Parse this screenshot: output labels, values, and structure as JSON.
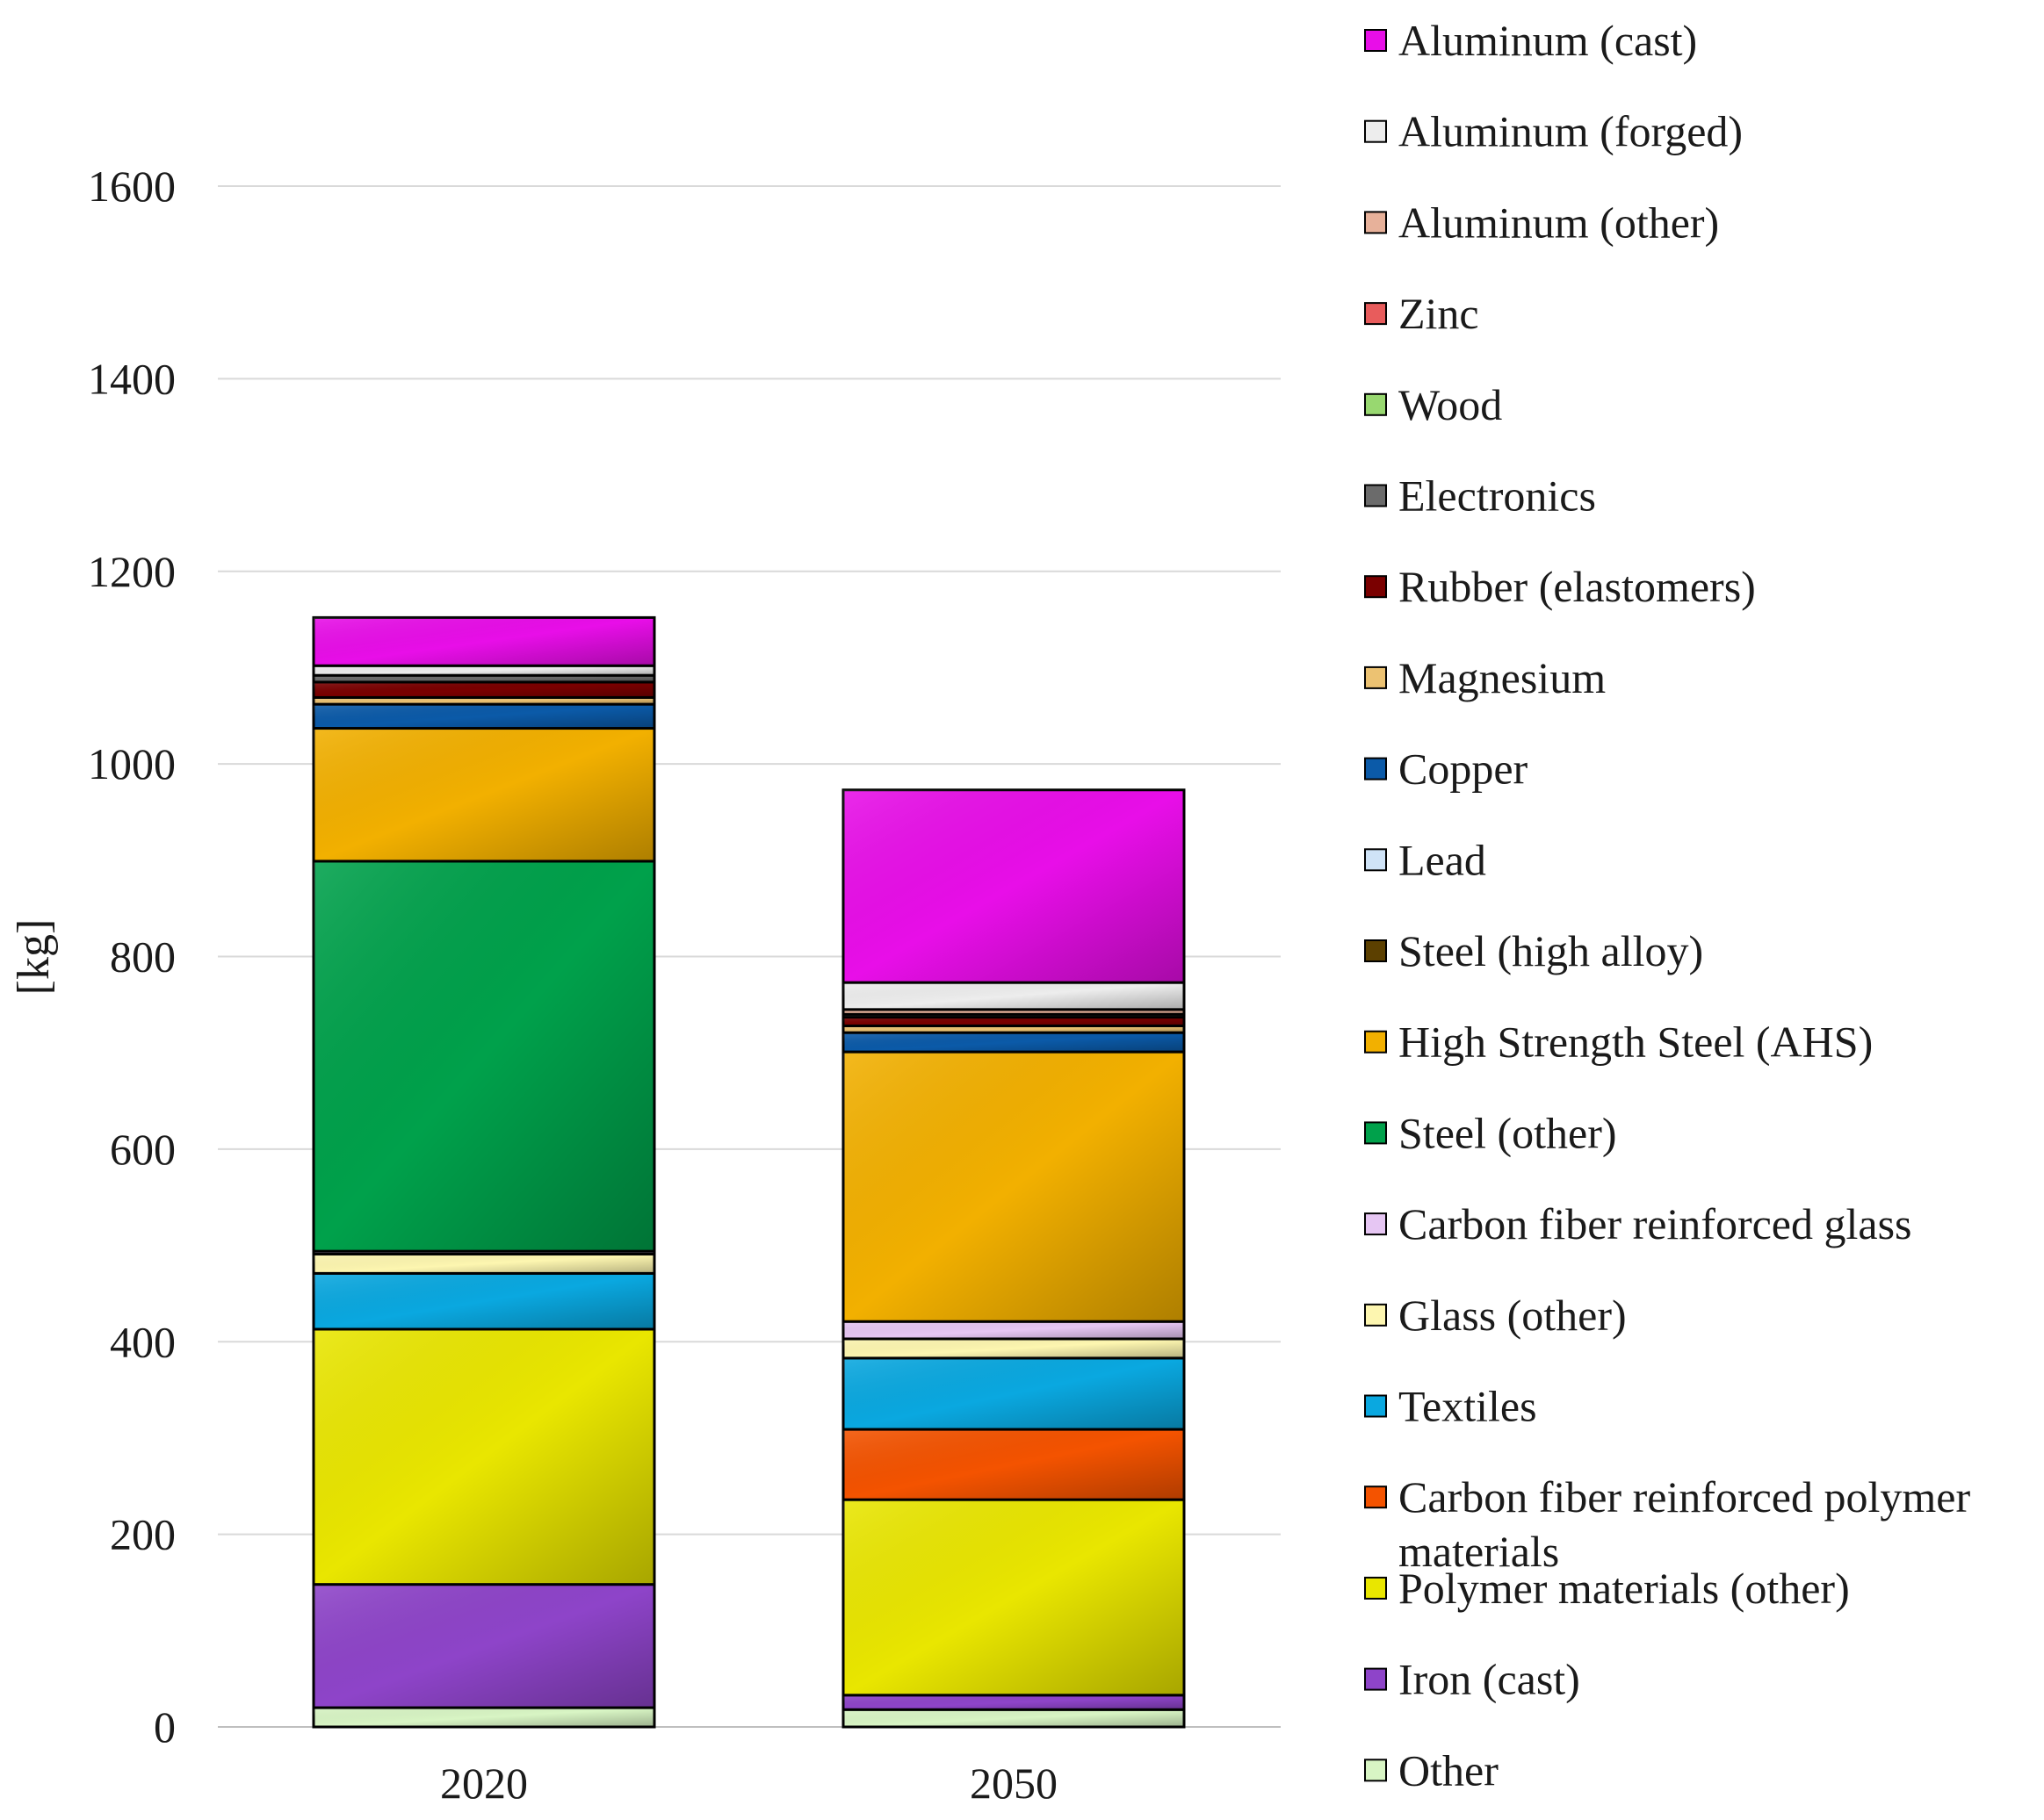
{
  "chart_data": {
    "type": "bar",
    "stacked": true,
    "title": "",
    "xlabel": "",
    "ylabel": "[kg]",
    "ylim": [
      0,
      1600
    ],
    "yticks": [
      "0",
      "200",
      "400",
      "600",
      "800",
      "1000",
      "1200",
      "1400",
      "1600"
    ],
    "grid": true,
    "legend_position": "right",
    "categories": [
      "2020",
      "2050"
    ],
    "series": [
      {
        "name": "Other",
        "color": "#d8f5c4",
        "values": [
          20,
          18
        ]
      },
      {
        "name": "Iron (cast)",
        "color": "#8e44c9",
        "values": [
          128,
          15
        ]
      },
      {
        "name": "Polymer materials (other)",
        "color": "#e9e600",
        "values": [
          265,
          203
        ]
      },
      {
        "name": "Carbon fiber reinforced polymer materials",
        "color": "#f45300",
        "values": [
          0,
          73
        ]
      },
      {
        "name": "Textiles",
        "color": "#0aa8e0",
        "values": [
          58,
          74
        ]
      },
      {
        "name": "Glass (other)",
        "color": "#fdf6b0",
        "values": [
          20,
          20
        ]
      },
      {
        "name": "Carbon fiber reinforced glass",
        "color": "#e6c6f3",
        "values": [
          3,
          18
        ]
      },
      {
        "name": "Steel (other)",
        "color": "#00a14b",
        "values": [
          405,
          0
        ]
      },
      {
        "name": "High Strength Steel (AHS)",
        "color": "#f2b000",
        "values": [
          138,
          280
        ]
      },
      {
        "name": "Steel (high alloy)",
        "color": "#5c4000",
        "values": [
          0,
          0
        ]
      },
      {
        "name": "Lead",
        "color": "#cfe3f7",
        "values": [
          0,
          0
        ]
      },
      {
        "name": "Copper",
        "color": "#0b5aa8",
        "values": [
          25,
          20
        ]
      },
      {
        "name": "Magnesium",
        "color": "#ecc272",
        "values": [
          7,
          7
        ]
      },
      {
        "name": "Rubber (elastomers)",
        "color": "#7a0000",
        "values": [
          16,
          9
        ]
      },
      {
        "name": "Electronics",
        "color": "#6b6b6b",
        "values": [
          7,
          3
        ]
      },
      {
        "name": "Wood",
        "color": "#98d870",
        "values": [
          0,
          0
        ]
      },
      {
        "name": "Zinc",
        "color": "#e85c5c",
        "values": [
          0,
          0
        ]
      },
      {
        "name": "Aluminum (other)",
        "color": "#e7b19a",
        "values": [
          0,
          5
        ]
      },
      {
        "name": "Aluminum (forged)",
        "color": "#ededed",
        "values": [
          10,
          28
        ]
      },
      {
        "name": "Aluminum (cast)",
        "color": "#e80ee8",
        "values": [
          50,
          200
        ]
      }
    ],
    "legend_order": [
      "Aluminum (cast)",
      "Aluminum (forged)",
      "Aluminum (other)",
      "Zinc",
      "Wood",
      "Electronics",
      "Rubber (elastomers)",
      "Magnesium",
      "Copper",
      "Lead",
      "Steel (high alloy)",
      "High Strength Steel (AHS)",
      "Steel (other)",
      "Carbon fiber reinforced glass",
      "Glass (other)",
      "Textiles",
      "Carbon fiber reinforced polymer materials",
      "Polymer materials (other)",
      "Iron (cast)",
      "Other"
    ],
    "legend_wrapped_labels": {
      "Carbon fiber reinforced polymer materials": [
        "Carbon fiber reinforced polymer",
        "materials"
      ]
    }
  }
}
